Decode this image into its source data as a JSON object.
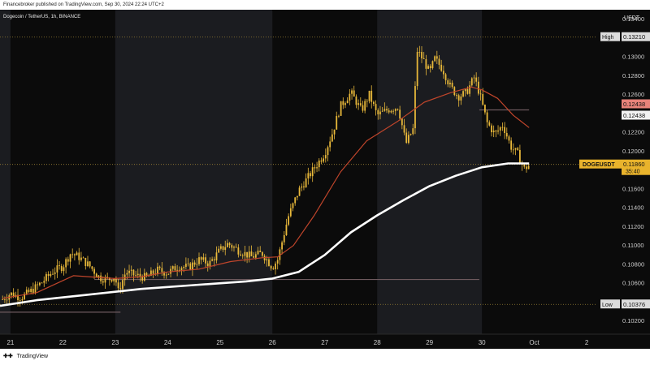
{
  "header": {
    "publisher": "Financebroker published on TradingView.com, Sep 30, 2024 22:24 UTC+2"
  },
  "footer": {
    "logo_icon": "tradingview-logo-icon",
    "brand": "TradingView"
  },
  "colors": {
    "background": "#0b0b0b",
    "session_shade": "#1b1c20",
    "candle": "#e8b83a",
    "ema_short": "#c0452b",
    "ema_long": "#ffffff",
    "dotted_level": "#9a7f34",
    "support_line": "#6e5a5e",
    "axis_text": "#cfcfcf"
  },
  "chart_data": {
    "type": "candlestick",
    "title": "Dogecoin / TetherUS, 1h, BINANCE",
    "ylabel": "USDT",
    "ylim": [
      0.1006,
      0.135
    ],
    "x_tick_labels": [
      "21",
      "22",
      "23",
      "24",
      "25",
      "26",
      "27",
      "28",
      "29",
      "30",
      "Oct",
      "2"
    ],
    "y_tick_labels": [
      "0.10200",
      "0.10400",
      "0.10600",
      "0.10800",
      "0.11000",
      "0.11200",
      "0.11400",
      "0.11600",
      "0.11800",
      "0.12000",
      "0.12200",
      "0.12400",
      "0.12600",
      "0.12800",
      "0.13000",
      "0.13200",
      "0.13400"
    ],
    "x_day_range": [
      20.8,
      32.2
    ],
    "shaded_sessions": [
      [
        20.8,
        21.0
      ],
      [
        23.0,
        26.0
      ],
      [
        28.0,
        30.0
      ]
    ],
    "close_path": [
      [
        20.85,
        0.1043
      ],
      [
        21.0,
        0.1049
      ],
      [
        21.2,
        0.1045
      ],
      [
        21.4,
        0.1052
      ],
      [
        21.6,
        0.1061
      ],
      [
        21.8,
        0.1072
      ],
      [
        22.0,
        0.1078
      ],
      [
        22.15,
        0.1092
      ],
      [
        22.3,
        0.1088
      ],
      [
        22.5,
        0.1079
      ],
      [
        22.7,
        0.1066
      ],
      [
        22.85,
        0.1064
      ],
      [
        23.0,
        0.1067
      ],
      [
        23.05,
        0.105
      ],
      [
        23.2,
        0.1072
      ],
      [
        23.4,
        0.1068
      ],
      [
        23.6,
        0.1066
      ],
      [
        23.8,
        0.1074
      ],
      [
        24.0,
        0.1071
      ],
      [
        24.2,
        0.1078
      ],
      [
        24.4,
        0.1077
      ],
      [
        24.6,
        0.1085
      ],
      [
        24.8,
        0.1081
      ],
      [
        25.0,
        0.1095
      ],
      [
        25.15,
        0.1102
      ],
      [
        25.35,
        0.1095
      ],
      [
        25.6,
        0.1088
      ],
      [
        25.8,
        0.1092
      ],
      [
        26.0,
        0.1077
      ],
      [
        26.1,
        0.1085
      ],
      [
        26.3,
        0.113
      ],
      [
        26.5,
        0.1158
      ],
      [
        26.75,
        0.1178
      ],
      [
        27.0,
        0.1198
      ],
      [
        27.15,
        0.122
      ],
      [
        27.3,
        0.1248
      ],
      [
        27.5,
        0.1262
      ],
      [
        27.7,
        0.1243
      ],
      [
        27.85,
        0.126
      ],
      [
        28.0,
        0.1238
      ],
      [
        28.2,
        0.1244
      ],
      [
        28.4,
        0.1247
      ],
      [
        28.55,
        0.1208
      ],
      [
        28.7,
        0.1225
      ],
      [
        28.75,
        0.1308
      ],
      [
        28.9,
        0.1295
      ],
      [
        29.0,
        0.1283
      ],
      [
        29.1,
        0.1298
      ],
      [
        29.25,
        0.1287
      ],
      [
        29.4,
        0.1268
      ],
      [
        29.55,
        0.1258
      ],
      [
        29.7,
        0.1262
      ],
      [
        29.85,
        0.1278
      ],
      [
        29.95,
        0.1262
      ],
      [
        30.1,
        0.123
      ],
      [
        30.25,
        0.1218
      ],
      [
        30.4,
        0.1228
      ],
      [
        30.55,
        0.1205
      ],
      [
        30.7,
        0.1196
      ],
      [
        30.8,
        0.1181
      ],
      [
        30.9,
        0.1185
      ]
    ],
    "ema_short": [
      [
        20.85,
        0.1044
      ],
      [
        21.5,
        0.105
      ],
      [
        22.2,
        0.1068
      ],
      [
        23.0,
        0.1065
      ],
      [
        23.5,
        0.1067
      ],
      [
        24.0,
        0.1072
      ],
      [
        24.6,
        0.1075
      ],
      [
        25.2,
        0.1083
      ],
      [
        25.8,
        0.1087
      ],
      [
        26.1,
        0.1088
      ],
      [
        26.4,
        0.11
      ],
      [
        26.8,
        0.1132
      ],
      [
        27.3,
        0.1178
      ],
      [
        27.8,
        0.1211
      ],
      [
        28.4,
        0.1232
      ],
      [
        28.9,
        0.1252
      ],
      [
        29.4,
        0.1262
      ],
      [
        29.8,
        0.1268
      ],
      [
        30.0,
        0.1265
      ],
      [
        30.3,
        0.1256
      ],
      [
        30.6,
        0.1238
      ],
      [
        30.9,
        0.1225
      ]
    ],
    "ema_long": [
      [
        20.8,
        0.1036
      ],
      [
        21.5,
        0.1042
      ],
      [
        22.5,
        0.1048
      ],
      [
        23.5,
        0.1054
      ],
      [
        24.5,
        0.1058
      ],
      [
        25.5,
        0.1062
      ],
      [
        26.0,
        0.1065
      ],
      [
        26.5,
        0.1072
      ],
      [
        27.0,
        0.109
      ],
      [
        27.5,
        0.1114
      ],
      [
        28.0,
        0.1132
      ],
      [
        28.5,
        0.1148
      ],
      [
        29.0,
        0.1163
      ],
      [
        29.5,
        0.1174
      ],
      [
        30.0,
        0.1183
      ],
      [
        30.5,
        0.1187
      ],
      [
        30.9,
        0.1187
      ]
    ],
    "dotted_levels": [
      {
        "y": 0.1321,
        "label": "High",
        "value": "0.13210"
      },
      {
        "y": 0.1186,
        "label": "DOGEUSDT",
        "value": "0.11860",
        "countdown": "35:40"
      },
      {
        "y": 0.10376,
        "label": "Low",
        "value": "0.10376"
      }
    ],
    "support_lines": [
      {
        "x": [
          22.6,
          29.95
        ],
        "y": 0.1064
      },
      {
        "x": [
          20.8,
          23.1
        ],
        "y": 0.10293
      },
      {
        "x": [
          29.95,
          30.9
        ],
        "y": 0.12438
      }
    ],
    "price_tags": [
      {
        "value": "0.12438",
        "style": "red"
      },
      {
        "value": "0.12438",
        "style": "white"
      }
    ]
  }
}
